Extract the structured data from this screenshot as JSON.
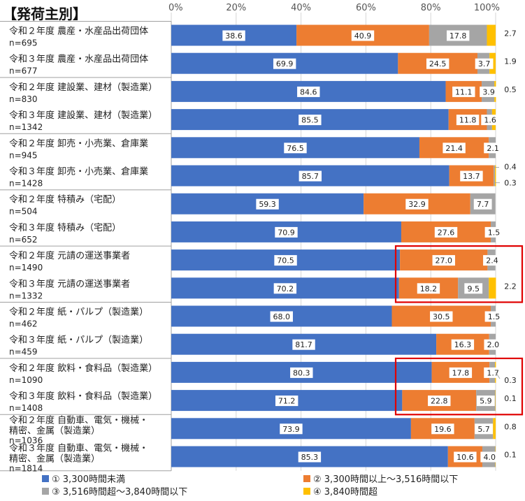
{
  "chart_data": {
    "type": "bar",
    "title": "【発荷主別】",
    "orientation": "horizontal-stacked-100",
    "xlim": [
      0,
      100
    ],
    "x_ticks": [
      "0%",
      "20%",
      "40%",
      "60%",
      "80%",
      "100%"
    ],
    "series": [
      {
        "name": "① 3,300時間未満",
        "color": "#4472C4"
      },
      {
        "name": "② 3,300時間以上～3,516時間以下",
        "color": "#ED7D31"
      },
      {
        "name": "③ 3,516時間超～3,840時間以下",
        "color": "#A5A5A5"
      },
      {
        "name": "④ 3,840時間超",
        "color": "#FFC000"
      }
    ],
    "rows": [
      {
        "label": "令和２年度 農産・水産品出荷団体",
        "n": "n=695",
        "values": [
          38.6,
          40.9,
          17.8,
          2.7
        ]
      },
      {
        "label": "令和３年度 農産・水産品出荷団体",
        "n": "n=677",
        "values": [
          69.9,
          24.5,
          3.7,
          1.9
        ]
      },
      {
        "label": "令和２年度 建設業、建材（製造業）",
        "n": "n=830",
        "values": [
          84.6,
          11.1,
          3.9,
          0.5
        ]
      },
      {
        "label": "令和３年度 建設業、建材（製造業）",
        "n": "n=1342",
        "values": [
          85.5,
          11.8,
          1.6,
          1.1
        ]
      },
      {
        "label": "令和２年度 卸売・小売業、倉庫業",
        "n": "n=945",
        "values": [
          76.5,
          21.4,
          2.1,
          0
        ]
      },
      {
        "label": "令和３年度 卸売・小売業、倉庫業",
        "n": "n=1428",
        "values": [
          85.7,
          13.7,
          0.4,
          0.3
        ]
      },
      {
        "label": "令和２年度 特積み（宅配）",
        "n": "n=504",
        "values": [
          59.3,
          32.9,
          7.7,
          0
        ]
      },
      {
        "label": "令和３年度 特積み（宅配）",
        "n": "n=652",
        "values": [
          70.9,
          27.6,
          1.5,
          0
        ]
      },
      {
        "label": "令和２年度 元請の運送事業者",
        "n": "n=1490",
        "values": [
          70.5,
          27.0,
          2.4,
          0
        ]
      },
      {
        "label": "令和３年度 元請の運送事業者",
        "n": "n=1332",
        "values": [
          70.2,
          18.2,
          9.5,
          2.2
        ]
      },
      {
        "label": "令和２年度 紙・パルプ（製造業）",
        "n": "n=462",
        "values": [
          68.0,
          30.5,
          1.5,
          0
        ]
      },
      {
        "label": "令和３年度 紙・パルプ（製造業）",
        "n": "n=459",
        "values": [
          81.7,
          16.3,
          2.0,
          0
        ]
      },
      {
        "label": "令和２年度 飲料・食料品（製造業）",
        "n": "n=1090",
        "values": [
          80.3,
          17.8,
          1.7,
          0.3
        ]
      },
      {
        "label": "令和３年度 飲料・食料品（製造業）",
        "n": "n=1408",
        "values": [
          71.2,
          22.8,
          5.9,
          0.1
        ]
      },
      {
        "label": "令和２年度 自動車、電気・機械・",
        "label2": "精密、金属（製造業）",
        "n": "n=1036",
        "values": [
          73.9,
          19.6,
          5.7,
          0.8
        ]
      },
      {
        "label": "令和３年度 自動車、電気・機械・",
        "label2": "精密、金属（製造業）",
        "n": "n=1814",
        "values": [
          85.3,
          10.6,
          4.0,
          0.1
        ]
      }
    ],
    "data_labels": [
      [
        "38.6",
        "40.9",
        "17.8",
        "2.7"
      ],
      [
        "69.9",
        "24.5",
        "3.7",
        "1.9"
      ],
      [
        "84.6",
        "11.1",
        "3.9",
        "0.5"
      ],
      [
        "85.5",
        "11.8",
        "1.6",
        ""
      ],
      [
        "76.5",
        "21.4",
        "2.1",
        ""
      ],
      [
        "85.7",
        "13.7",
        "0.4",
        "0.3"
      ],
      [
        "59.3",
        "32.9",
        "7.7",
        ""
      ],
      [
        "70.9",
        "27.6",
        "1.5",
        ""
      ],
      [
        "70.5",
        "27.0",
        "2.4",
        ""
      ],
      [
        "70.2",
        "18.2",
        "9.5",
        "2.2"
      ],
      [
        "68.0",
        "30.5",
        "1.5",
        ""
      ],
      [
        "81.7",
        "16.3",
        "2.0",
        ""
      ],
      [
        "80.3",
        "17.8",
        "1.7",
        "0.3"
      ],
      [
        "71.2",
        "22.8",
        "5.9",
        "0.1"
      ],
      [
        "73.9",
        "19.6",
        "5.7",
        "0.8"
      ],
      [
        "85.3",
        "10.6",
        "4.0",
        "0.1"
      ]
    ],
    "highlight_color": "#E00000",
    "highlights": [
      [
        8,
        9
      ],
      [
        12,
        13
      ]
    ],
    "grid": true,
    "legend_position": "bottom"
  }
}
